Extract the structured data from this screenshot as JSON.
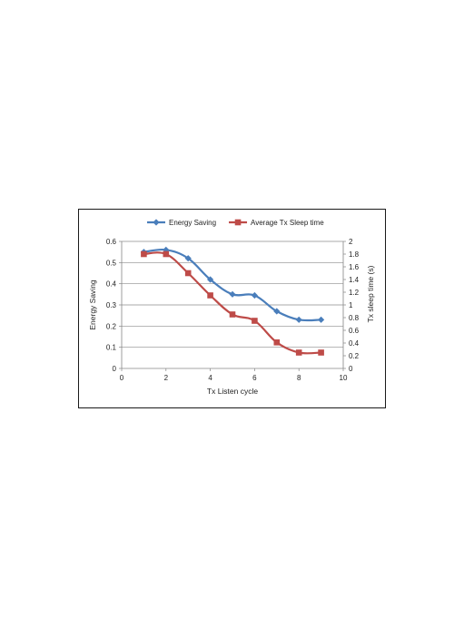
{
  "chart_data": {
    "type": "line",
    "xlabel": "Tx Listen cycle",
    "ylabel": "Energy Saving",
    "y2label": "Tx sleep time (s)",
    "xlim": [
      0,
      10
    ],
    "ylim": [
      0,
      0.6
    ],
    "y2lim": [
      0,
      2
    ],
    "xticks": [
      0,
      2,
      4,
      6,
      8,
      10
    ],
    "xtick_labels": [
      "0",
      "2",
      "4",
      "6",
      "8",
      "10"
    ],
    "yticks": [
      0,
      0.1,
      0.2,
      0.3,
      0.4,
      0.5,
      0.6
    ],
    "ytick_labels": [
      "0",
      "0.1",
      "0.2",
      "0.3",
      "0.4",
      "0.5",
      "0.6"
    ],
    "y2ticks": [
      0,
      0.2,
      0.4,
      0.6,
      0.8,
      1,
      1.2,
      1.4,
      1.6,
      1.8,
      2
    ],
    "y2tick_labels": [
      "0",
      "0.2",
      "0.4",
      "0.6",
      "0.8",
      "1",
      "1.2",
      "1.4",
      "1.6",
      "1.8",
      "2"
    ],
    "grid": true,
    "legend_position": "top",
    "series": [
      {
        "name": "Energy Saving",
        "axis": "left",
        "color": "#4a7ebb",
        "marker": "diamond",
        "x": [
          1,
          2,
          3,
          4,
          5,
          6,
          7,
          8,
          9
        ],
        "y": [
          0.55,
          0.56,
          0.52,
          0.42,
          0.35,
          0.345,
          0.27,
          0.23,
          0.23
        ]
      },
      {
        "name": "Average Tx Sleep time",
        "axis": "right",
        "color": "#be4b48",
        "marker": "square",
        "x": [
          1,
          2,
          3,
          4,
          5,
          6,
          7,
          8,
          9
        ],
        "y": [
          1.8,
          1.8,
          1.5,
          1.15,
          0.85,
          0.75,
          0.41,
          0.25,
          0.25
        ]
      }
    ]
  }
}
